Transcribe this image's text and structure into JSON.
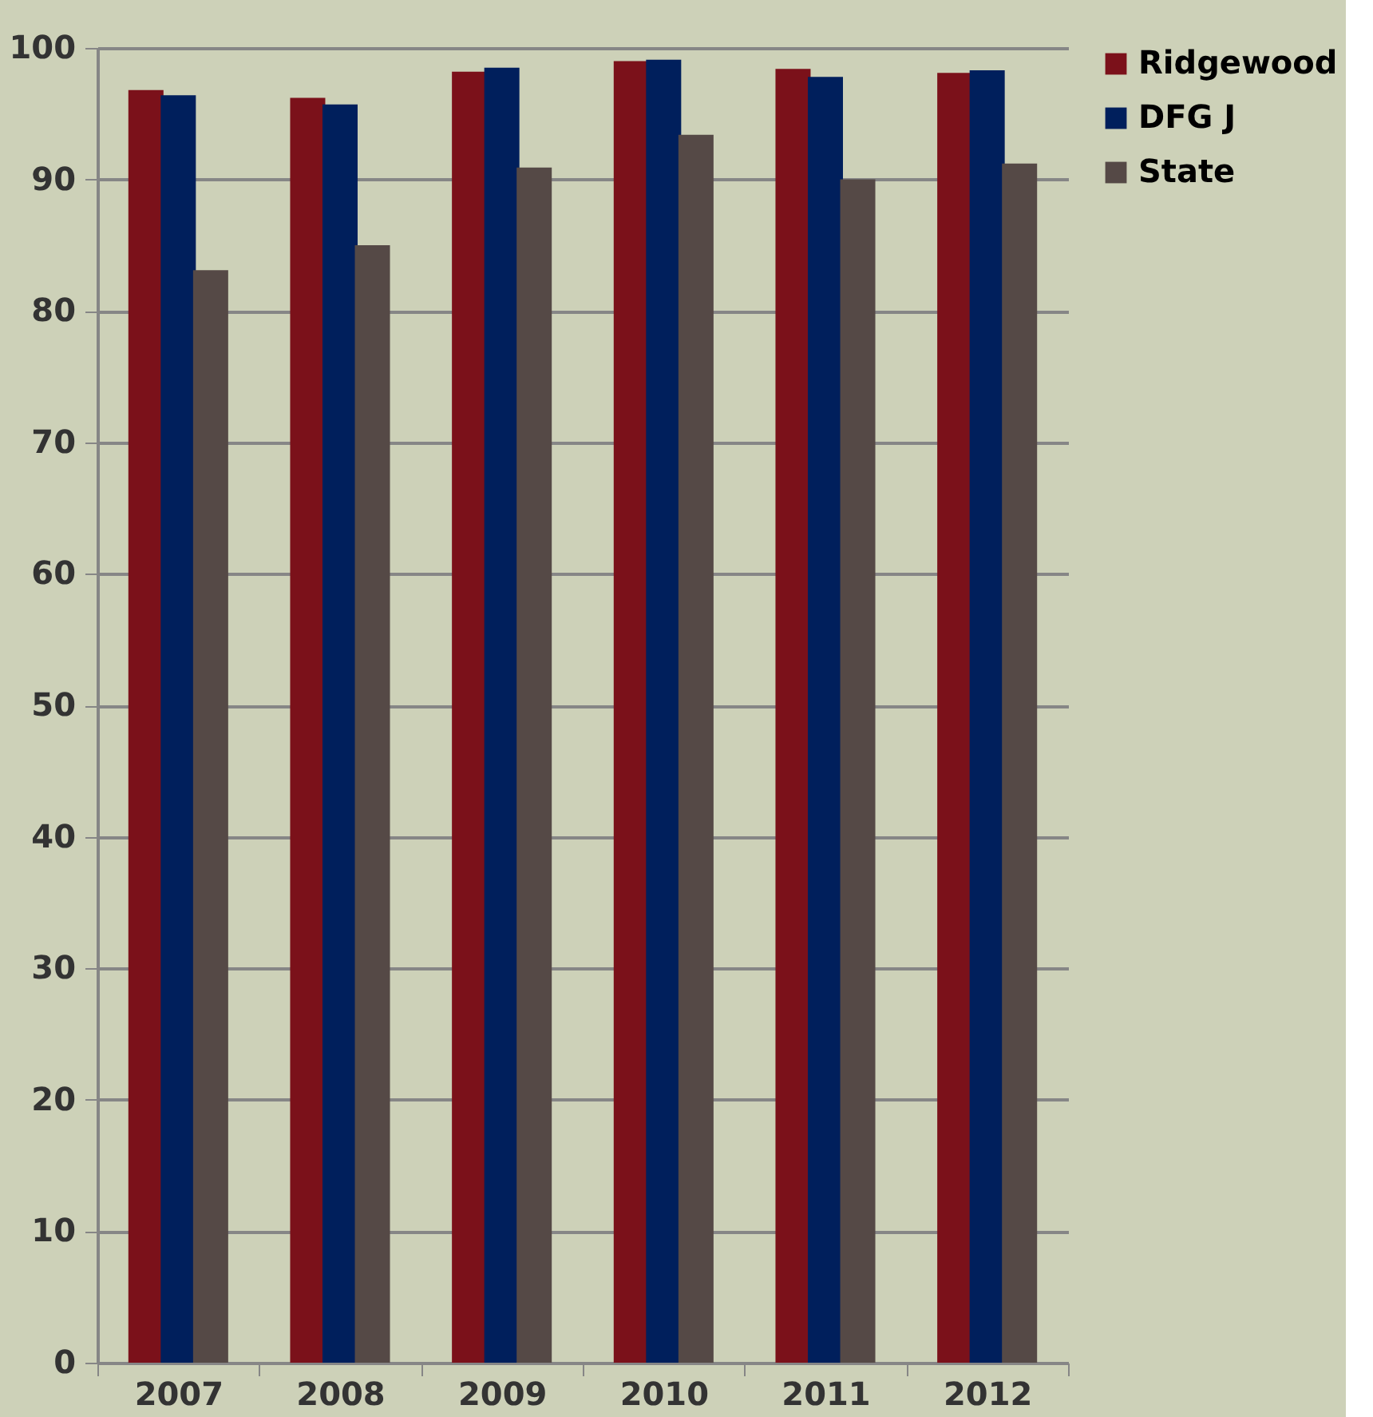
{
  "chart_data": {
    "type": "bar",
    "categories": [
      "2007",
      "2008",
      "2009",
      "2010",
      "2011",
      "2012"
    ],
    "series": [
      {
        "name": "Ridgewood",
        "color": "#7b111a",
        "values": [
          96.8,
          96.2,
          98.2,
          99.0,
          98.4,
          98.1
        ]
      },
      {
        "name": "DFG J",
        "color": "#001f5c",
        "values": [
          96.4,
          95.7,
          98.5,
          99.1,
          97.8,
          98.3
        ]
      },
      {
        "name": "State",
        "color": "#554946",
        "values": [
          83.1,
          85.0,
          90.9,
          93.4,
          90.0,
          91.2
        ]
      }
    ],
    "ylim": [
      0,
      100
    ],
    "yticks": [
      0,
      10,
      20,
      30,
      40,
      50,
      60,
      70,
      80,
      90,
      100
    ],
    "grid": "y",
    "legend": "right"
  }
}
